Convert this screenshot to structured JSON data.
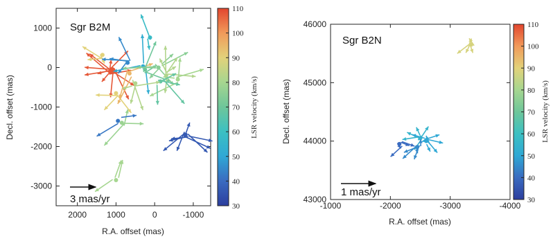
{
  "chart_data": [
    {
      "type": "scatter",
      "title": "Sgr B2M",
      "xlabel": "R.A. offset (mas)",
      "ylabel": "Decl. offset (mas)",
      "xlim": [
        2550,
        -1450
      ],
      "ylim": [
        -3500,
        1500
      ],
      "xticks": [
        2000,
        1000,
        0,
        -1000
      ],
      "xticklabels": [
        "2000",
        "1000",
        "0",
        "-1000"
      ],
      "yticks": [
        1000,
        0,
        -1000,
        -2000,
        -3000
      ],
      "yticklabels": [
        "1000",
        "0",
        "-1000",
        "-2000",
        "-3000"
      ],
      "colorbar": {
        "label": "LSR velocity (km/s)",
        "range": [
          30,
          110
        ],
        "ticks": [
          30,
          40,
          50,
          60,
          70,
          80,
          90,
          100,
          110
        ],
        "ticklabels": [
          "30",
          "40",
          "50",
          "60",
          "70",
          "80",
          "90",
          "100",
          "110"
        ],
        "colormap": [
          "#2c3e9e",
          "#3a6bc0",
          "#2fa8d5",
          "#3cc0c2",
          "#6ec69a",
          "#a6d690",
          "#e2d27a",
          "#f19a5a",
          "#e2462e"
        ]
      },
      "scale_arrow_label": "3 mas/yr",
      "grid": false,
      "groups": [
        {
          "x": 1100,
          "y": -80,
          "v": 108,
          "n": 12
        },
        {
          "x": 1350,
          "y": 320,
          "v": 90,
          "n": 3
        },
        {
          "x": 1000,
          "y": -650,
          "v": 90,
          "n": 3
        },
        {
          "x": 650,
          "y": -150,
          "v": 95,
          "n": 3
        },
        {
          "x": 700,
          "y": 120,
          "v": 45,
          "n": 4
        },
        {
          "x": 300,
          "y": 30,
          "v": 52,
          "n": 3
        },
        {
          "x": 250,
          "y": -50,
          "v": 70,
          "n": 3
        },
        {
          "x": -100,
          "y": 0,
          "v": 75,
          "n": 6
        },
        {
          "x": -300,
          "y": -200,
          "v": 82,
          "n": 6
        },
        {
          "x": -600,
          "y": -300,
          "v": 80,
          "n": 4
        },
        {
          "x": -150,
          "y": -350,
          "v": 68,
          "n": 4
        },
        {
          "x": 500,
          "y": -400,
          "v": 82,
          "n": 4
        },
        {
          "x": 120,
          "y": 760,
          "v": 58,
          "n": 2
        },
        {
          "x": 850,
          "y": -1400,
          "v": 78,
          "n": 3
        },
        {
          "x": 950,
          "y": -1350,
          "v": 42,
          "n": 2
        },
        {
          "x": -800,
          "y": -1700,
          "v": 36,
          "n": 8
        },
        {
          "x": 1000,
          "y": -2850,
          "v": 80,
          "n": 3
        }
      ]
    },
    {
      "type": "scatter",
      "title": "Sgr B2N",
      "xlabel": "R.A. offset (mas)",
      "ylabel": "Decl. offset (mas)",
      "xlim": [
        -1000,
        -4000
      ],
      "ylim": [
        43000,
        46000
      ],
      "xticks": [
        -1000,
        -2000,
        -3000,
        -4000
      ],
      "xticklabels": [
        "-1000",
        "-2000",
        "-3000",
        "-4000"
      ],
      "yticks": [
        43000,
        44000,
        45000,
        46000
      ],
      "yticklabels": [
        "43000",
        "44000",
        "45000",
        "46000"
      ],
      "colorbar": {
        "label": "LSR velocity (km/s)",
        "range": [
          30,
          110
        ],
        "ticks": [
          30,
          40,
          50,
          60,
          70,
          80,
          90,
          100,
          110
        ],
        "ticklabels": [
          "30",
          "40",
          "50",
          "60",
          "70",
          "80",
          "90",
          "100",
          "110"
        ],
        "colormap": [
          "#2c3e9e",
          "#3a6bc0",
          "#2fa8d5",
          "#3cc0c2",
          "#6ec69a",
          "#a6d690",
          "#e2d27a",
          "#f19a5a",
          "#e2462e"
        ]
      },
      "scale_arrow_label": "1 mas/yr",
      "grid": false,
      "groups": [
        {
          "x": -3350,
          "y": 45650,
          "v": 88,
          "n": 5
        },
        {
          "x": -2500,
          "y": 44050,
          "v": 55,
          "n": 6
        },
        {
          "x": -2600,
          "y": 44000,
          "v": 50,
          "n": 8
        },
        {
          "x": -2150,
          "y": 43950,
          "v": 40,
          "n": 4
        },
        {
          "x": -2450,
          "y": 43900,
          "v": 45,
          "n": 5
        }
      ]
    }
  ]
}
